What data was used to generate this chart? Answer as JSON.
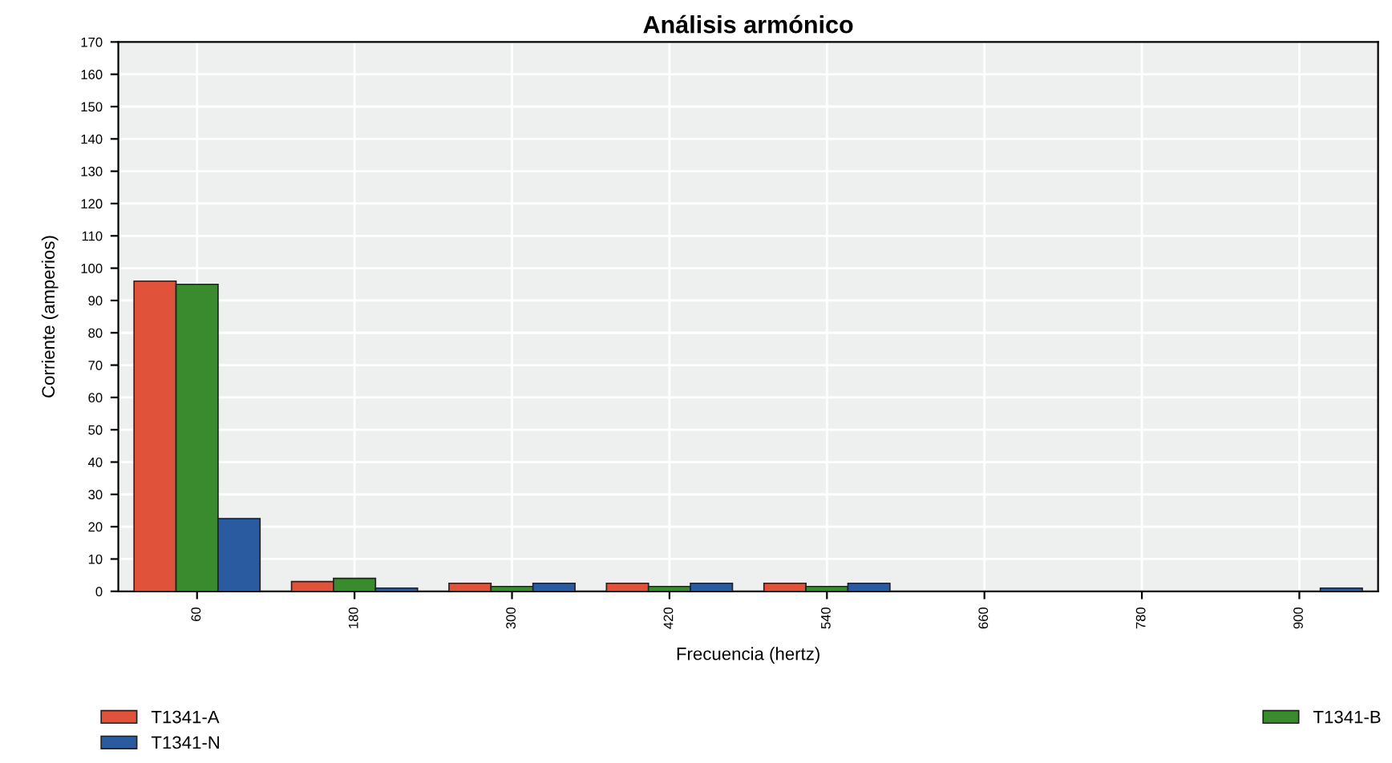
{
  "chart_data": {
    "type": "bar",
    "title": "Análisis armónico",
    "xlabel": "Frecuencia (hertz)",
    "ylabel": "Corriente (amperios)",
    "categories": [
      "60",
      "180",
      "300",
      "420",
      "540",
      "660",
      "780",
      "900"
    ],
    "series": [
      {
        "name": "T1341-A",
        "color": "#e0523a",
        "values": [
          96,
          3,
          2.5,
          2.5,
          2.5,
          null,
          null,
          null
        ]
      },
      {
        "name": "T1341-B",
        "color": "#3a8a2e",
        "values": [
          95,
          4,
          1.5,
          1.5,
          1.5,
          null,
          null,
          null
        ]
      },
      {
        "name": "T1341-N",
        "color": "#2a5aa0",
        "values": [
          22.5,
          1,
          2.5,
          2.5,
          2.5,
          null,
          null,
          1
        ]
      }
    ],
    "ylim": [
      0,
      170
    ],
    "yticks": [
      0,
      10,
      20,
      30,
      40,
      50,
      60,
      70,
      80,
      90,
      100,
      110,
      120,
      130,
      140,
      150,
      160,
      170
    ],
    "grid": true,
    "legend": "bottom"
  }
}
